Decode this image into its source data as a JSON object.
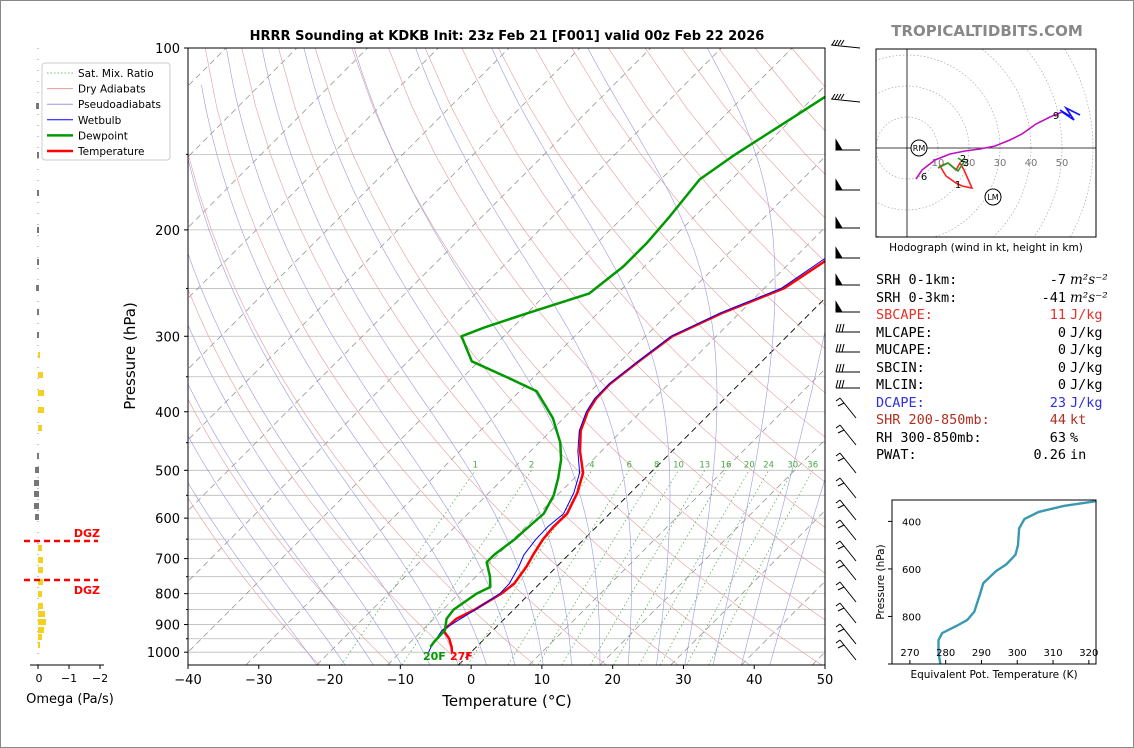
{
  "watermark": "TROPICALTIDBITS.COM",
  "chart_data": [
    {
      "type": "skew-t",
      "title": "HRRR Sounding at KDKB Init: 23z Feb 21 [F001] valid 00z Feb 22 2026",
      "xlabel": "Temperature (°C)",
      "ylabel": "Pressure (hPa)",
      "xlim": [
        -40,
        50
      ],
      "ylim": [
        1050,
        100
      ],
      "y_scale": "log",
      "x_ticks": [
        "−40",
        "−30",
        "−20",
        "−10",
        "0",
        "10",
        "20",
        "30",
        "40",
        "50"
      ],
      "y_ticks": [
        "100",
        "200",
        "300",
        "400",
        "500",
        "600",
        "700",
        "800",
        "900",
        "1000"
      ],
      "legend": {
        "placement": "top-left",
        "entries": [
          "Sat. Mix. Ratio",
          "Dry Adiabats",
          "Pseudoadiabats",
          "Wetbulb",
          "Dewpoint",
          "Temperature"
        ]
      },
      "mixing_ratio_labels": [
        "1",
        "2",
        "4",
        "6",
        "8",
        "10",
        "13",
        "16",
        "20",
        "24",
        "30",
        "36"
      ],
      "surface_labels": {
        "dewpoint": "20F",
        "temperature": "27F"
      },
      "series": [
        {
          "name": "Temperature",
          "color": "#ff0000",
          "points": [
            [
              -2.7,
              1000
            ],
            [
              -3.5,
              980
            ],
            [
              -5,
              950
            ],
            [
              -7,
              920
            ],
            [
              -6.8,
              880
            ],
            [
              -5.5,
              850
            ],
            [
              -4,
              800
            ],
            [
              -3.6,
              770
            ],
            [
              -4.3,
              720
            ],
            [
              -5,
              690
            ],
            [
              -5.8,
              650
            ],
            [
              -6.1,
              620
            ],
            [
              -6,
              590
            ],
            [
              -7.5,
              545
            ],
            [
              -9.5,
              505
            ],
            [
              -13,
              465
            ],
            [
              -15.8,
              430
            ],
            [
              -17.5,
              400
            ],
            [
              -18.2,
              380
            ],
            [
              -18.3,
              360
            ],
            [
              -17.4,
              330
            ],
            [
              -16.2,
              300
            ],
            [
              -12.5,
              275
            ],
            [
              -7.2,
              250
            ],
            [
              -4.8,
              220
            ],
            [
              -2,
              190
            ],
            [
              -0.5,
              170
            ],
            [
              0.5,
              160
            ],
            [
              3.6,
              140
            ],
            [
              7.2,
              120
            ],
            [
              8.2,
              110
            ],
            [
              9.5,
              100
            ]
          ]
        },
        {
          "name": "Wetbulb",
          "color": "#0000ff",
          "points": [
            [
              -6,
              1000
            ],
            [
              -6.4,
              980
            ],
            [
              -6.8,
              950
            ],
            [
              -7.2,
              920
            ],
            [
              -6.2,
              880
            ],
            [
              -5.4,
              850
            ],
            [
              -4.2,
              800
            ],
            [
              -4.3,
              770
            ],
            [
              -5.4,
              720
            ],
            [
              -6.3,
              690
            ],
            [
              -6.8,
              650
            ],
            [
              -6.9,
              620
            ],
            [
              -6.5,
              590
            ],
            [
              -8,
              545
            ],
            [
              -10,
              505
            ],
            [
              -13.3,
              465
            ],
            [
              -16,
              430
            ],
            [
              -17.7,
              400
            ],
            [
              -18.4,
              380
            ],
            [
              -18.4,
              360
            ],
            [
              -17.5,
              330
            ],
            [
              -16.4,
              300
            ],
            [
              -12.8,
              275
            ],
            [
              -7.6,
              250
            ],
            [
              -5.4,
              220
            ],
            [
              -2.6,
              190
            ],
            [
              -1,
              170
            ],
            [
              0,
              160
            ],
            [
              3,
              140
            ],
            [
              6.6,
              120
            ],
            [
              7.6,
              110
            ],
            [
              9,
              100
            ]
          ]
        },
        {
          "name": "Dewpoint",
          "color": "#009900",
          "points": [
            [
              -6.5,
              980
            ],
            [
              -6.7,
              960
            ],
            [
              -6.8,
              920
            ],
            [
              -8.2,
              880
            ],
            [
              -8.5,
              850
            ],
            [
              -7.5,
              800
            ],
            [
              -6.5,
              780
            ],
            [
              -8,
              750
            ],
            [
              -10.5,
              710
            ],
            [
              -10.5,
              690
            ],
            [
              -9.8,
              650
            ],
            [
              -9.5,
              610
            ],
            [
              -9.3,
              590
            ],
            [
              -10.5,
              550
            ],
            [
              -12.3,
              515
            ],
            [
              -14.5,
              480
            ],
            [
              -17,
              450
            ],
            [
              -21.5,
              410
            ],
            [
              -27.6,
              370
            ],
            [
              -34,
              350
            ],
            [
              -41,
              330
            ],
            [
              -46,
              300
            ],
            [
              -44,
              290
            ],
            [
              -40,
              275
            ],
            [
              -34,
              255
            ],
            [
              -33,
              230
            ],
            [
              -33,
              210
            ],
            [
              -33.5,
              190
            ],
            [
              -34.5,
              165
            ],
            [
              -33,
              150
            ],
            [
              -30,
              130
            ],
            [
              -27.5,
              115
            ],
            [
              -25.7,
              100
            ]
          ]
        }
      ]
    },
    {
      "type": "line",
      "name": "omega",
      "xlabel": "Omega (Pa/s)",
      "x_ticks": [
        "0",
        "−1",
        "−2"
      ],
      "dgz_label": "DGZ"
    },
    {
      "type": "hodograph",
      "caption": "Hodograph (wind in kt, height in km)",
      "ring_labels": [
        "10",
        "20",
        "30",
        "40",
        "50"
      ],
      "height_labels": [
        "1",
        "2",
        "3",
        "6",
        "9"
      ],
      "markers": [
        "RM",
        "LM"
      ]
    },
    {
      "type": "line",
      "name": "theta-e",
      "xlabel": "Equivalent Pot. Temperature (K)",
      "ylabel": "Pressure (hPa)",
      "xlim": [
        265,
        322
      ],
      "ylim": [
        1000,
        310
      ],
      "x_ticks": [
        "270",
        "280",
        "290",
        "300",
        "310",
        "320"
      ],
      "y_ticks": [
        "400",
        "600",
        "800"
      ],
      "points": [
        [
          278.5,
          1000
        ],
        [
          278,
          950
        ],
        [
          278,
          900
        ],
        [
          279,
          870
        ],
        [
          283,
          840
        ],
        [
          286,
          815
        ],
        [
          288,
          780
        ],
        [
          289.5,
          710
        ],
        [
          290.5,
          660
        ],
        [
          294,
          610
        ],
        [
          297,
          580
        ],
        [
          299.5,
          540
        ],
        [
          300.2,
          500
        ],
        [
          300.5,
          430
        ],
        [
          302,
          390
        ],
        [
          306,
          360
        ],
        [
          313,
          335
        ],
        [
          322,
          315
        ]
      ]
    }
  ],
  "params": [
    {
      "label": "SRH 0-1km:",
      "value": "-7",
      "unit": "m²s⁻²",
      "color": "#000"
    },
    {
      "label": "SRH 0-3km:",
      "value": "-41",
      "unit": "m²s⁻²",
      "color": "#000"
    },
    {
      "label": "SBCAPE:",
      "value": "11",
      "unit": "J/kg",
      "color": "#e8302a"
    },
    {
      "label": "MLCAPE:",
      "value": "0",
      "unit": "J/kg",
      "color": "#000"
    },
    {
      "label": "MUCAPE:",
      "value": "0",
      "unit": "J/kg",
      "color": "#000"
    },
    {
      "label": "SBCIN:",
      "value": "0",
      "unit": "J/kg",
      "color": "#000"
    },
    {
      "label": "MLCIN:",
      "value": "0",
      "unit": "J/kg",
      "color": "#000"
    },
    {
      "label": "DCAPE:",
      "value": "23",
      "unit": "J/kg",
      "color": "#3030e0"
    },
    {
      "label": "SHR 200-850mb:",
      "value": "44",
      "unit": "kt",
      "color": "#b03020"
    },
    {
      "label": "RH 300-850mb:",
      "value": "63",
      "unit": "%",
      "color": "#000"
    },
    {
      "label": "PWAT:",
      "value": "0.26",
      "unit": "in",
      "color": "#000"
    }
  ]
}
